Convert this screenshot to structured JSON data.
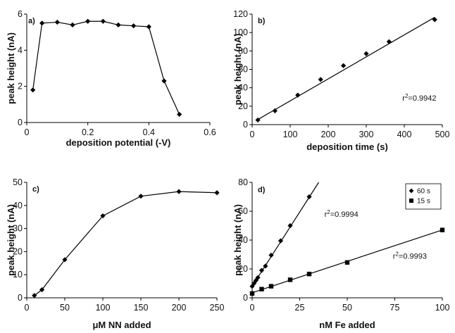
{
  "chart_data": [
    {
      "panel": "a)",
      "type": "line",
      "xlabel": "deposition potential (-V)",
      "ylabel": "peak height (nA)",
      "xlim": [
        0,
        0.6
      ],
      "ylim": [
        0,
        6
      ],
      "xticks": [
        0,
        0.2,
        0.4,
        0.6
      ],
      "yticks": [
        0,
        2,
        4,
        6
      ],
      "series": [
        {
          "marker": "diamond",
          "line": true,
          "x": [
            0.02,
            0.05,
            0.1,
            0.15,
            0.2,
            0.25,
            0.3,
            0.35,
            0.4,
            0.45,
            0.5
          ],
          "y": [
            1.8,
            5.5,
            5.55,
            5.4,
            5.6,
            5.6,
            5.4,
            5.35,
            5.3,
            2.3,
            0.45
          ]
        }
      ],
      "annotations": []
    },
    {
      "panel": "b)",
      "type": "scatter",
      "xlabel": "deposition time (s)",
      "ylabel": "peak height (nA)",
      "xlim": [
        0,
        500
      ],
      "ylim": [
        0,
        120
      ],
      "xticks": [
        0,
        100,
        200,
        300,
        400,
        500
      ],
      "yticks": [
        0,
        20,
        40,
        60,
        80,
        100,
        120
      ],
      "series": [
        {
          "marker": "diamond",
          "line": false,
          "x": [
            15,
            60,
            120,
            180,
            240,
            300,
            360,
            480
          ],
          "y": [
            5,
            15,
            32,
            49,
            64,
            77,
            90,
            114
          ],
          "fit": {
            "x": [
              15,
              480
            ],
            "y": [
              5.5,
              116.5
            ]
          }
        }
      ],
      "annotations": [
        {
          "text": "r",
          "sup": "2",
          "rest": "=0.9942",
          "x": 395,
          "y": 26
        }
      ]
    },
    {
      "panel": "c)",
      "type": "line",
      "xlabel": "μM NN added",
      "ylabel": "peak height (nA)",
      "xlim": [
        0,
        250
      ],
      "ylim": [
        0,
        50
      ],
      "xticks": [
        0,
        50,
        100,
        150,
        200,
        250
      ],
      "yticks": [
        0,
        10,
        20,
        30,
        40,
        50
      ],
      "series": [
        {
          "marker": "diamond",
          "line": true,
          "x": [
            10,
            20,
            50,
            100,
            150,
            200,
            250
          ],
          "y": [
            1,
            3.5,
            16.5,
            35.5,
            44,
            46,
            45.5
          ]
        }
      ],
      "annotations": []
    },
    {
      "panel": "d)",
      "type": "scatter",
      "xlabel": "nM Fe added",
      "ylabel": "peak height (nA)",
      "xlim": [
        0,
        100
      ],
      "ylim": [
        0,
        80
      ],
      "xticks": [
        0,
        25,
        50,
        75,
        100
      ],
      "yticks": [
        0,
        20,
        40,
        60,
        80
      ],
      "legend": {
        "placement": "top-right"
      },
      "series": [
        {
          "name": "60 s",
          "marker": "diamond",
          "line": false,
          "x": [
            0,
            1,
            2,
            3,
            5,
            7,
            10,
            15,
            20,
            30
          ],
          "y": [
            8,
            10,
            12,
            14,
            19,
            22,
            29.5,
            39.5,
            50,
            70
          ],
          "fit": {
            "x": [
              0,
              35
            ],
            "y": [
              8,
              80
            ]
          }
        },
        {
          "name": "15 s",
          "marker": "square",
          "line": false,
          "x": [
            0,
            5,
            10,
            20,
            30,
            50,
            100
          ],
          "y": [
            3,
            6,
            8,
            12.5,
            16.5,
            24.5,
            47
          ],
          "fit": {
            "x": [
              0,
              100
            ],
            "y": [
              3.5,
              47
            ]
          }
        }
      ],
      "annotations": [
        {
          "text": "r",
          "sup": "2",
          "rest": "=0.9994",
          "x": 38,
          "y": 56
        },
        {
          "text": "r",
          "sup": "2",
          "rest": "=0.9993",
          "x": 74,
          "y": 27
        }
      ]
    }
  ]
}
